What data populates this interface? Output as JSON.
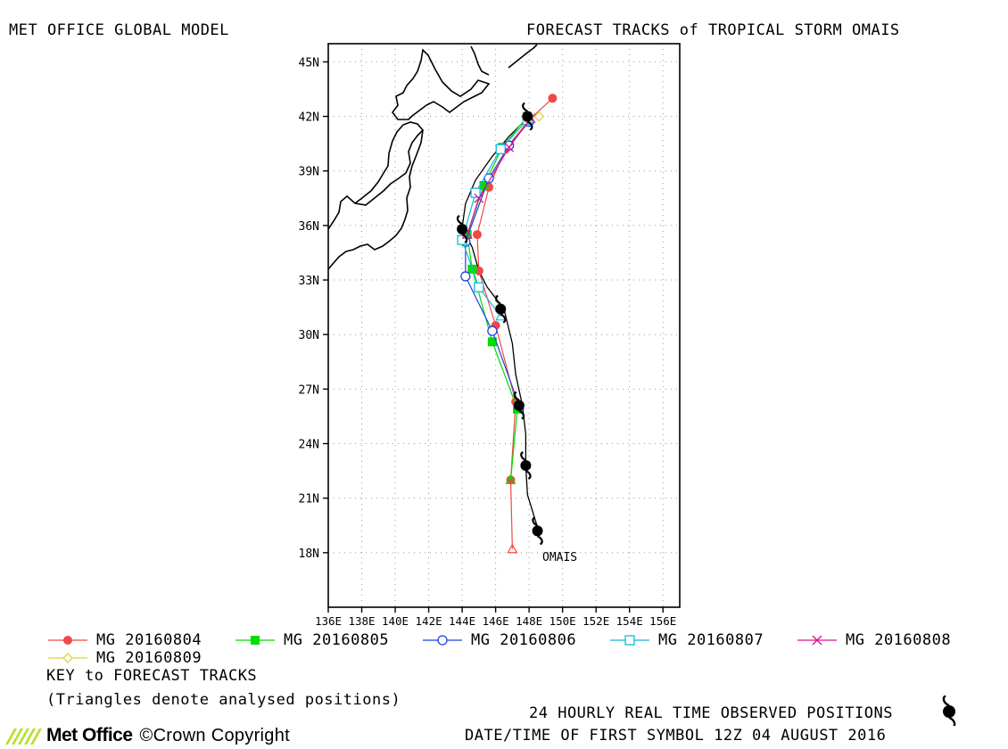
{
  "header": {
    "model_title": "MET OFFICE GLOBAL MODEL",
    "chart_title": "FORECAST TRACKS of TROPICAL STORM OMAIS"
  },
  "map": {
    "lon_range": [
      136,
      157
    ],
    "lat_range": [
      15,
      46
    ],
    "lat_ticks": [
      {
        "value": 18,
        "label": "18N"
      },
      {
        "value": 21,
        "label": "21N"
      },
      {
        "value": 24,
        "label": "24N"
      },
      {
        "value": 27,
        "label": "27N"
      },
      {
        "value": 30,
        "label": "30N"
      },
      {
        "value": 33,
        "label": "33N"
      },
      {
        "value": 36,
        "label": "36N"
      },
      {
        "value": 39,
        "label": "39N"
      },
      {
        "value": 42,
        "label": "42N"
      },
      {
        "value": 45,
        "label": "45N"
      }
    ],
    "lon_ticks": [
      {
        "value": 136,
        "label": "136E"
      },
      {
        "value": 138,
        "label": "138E"
      },
      {
        "value": 140,
        "label": "140E"
      },
      {
        "value": 142,
        "label": "142E"
      },
      {
        "value": 144,
        "label": "144E"
      },
      {
        "value": 146,
        "label": "146E"
      },
      {
        "value": 148,
        "label": "148E"
      },
      {
        "value": 150,
        "label": "150E"
      },
      {
        "value": 152,
        "label": "152E"
      },
      {
        "value": 154,
        "label": "154E"
      },
      {
        "value": 156,
        "label": "156E"
      }
    ],
    "grid": true,
    "storm_label": "OMAIS",
    "observed_track": [
      [
        148.6,
        19.1
      ],
      [
        147.9,
        21.2
      ],
      [
        147.8,
        22.8
      ],
      [
        147.8,
        24.5
      ],
      [
        147.6,
        26.1
      ],
      [
        147.2,
        27.8
      ],
      [
        147.0,
        29.5
      ],
      [
        146.5,
        31.4
      ],
      [
        145.5,
        32.6
      ],
      [
        145.0,
        33.5
      ],
      [
        144.6,
        34.8
      ],
      [
        144.0,
        35.9
      ],
      [
        144.2,
        37.2
      ],
      [
        144.8,
        38.5
      ],
      [
        145.8,
        39.8
      ],
      [
        146.8,
        40.9
      ],
      [
        147.9,
        41.9
      ]
    ],
    "observed_symbols": [
      [
        148.5,
        19.2
      ],
      [
        147.8,
        22.8
      ],
      [
        147.4,
        26.1
      ],
      [
        146.3,
        31.4
      ],
      [
        144.0,
        35.8
      ],
      [
        147.9,
        42.0
      ]
    ]
  },
  "chart_data": {
    "type": "map-tracks",
    "title": "FORECAST TRACKS of TROPICAL STORM OMAIS",
    "xlim": [
      136,
      157
    ],
    "ylim": [
      15,
      46
    ],
    "series": [
      {
        "name": "MG 20160804",
        "color": "#f04848",
        "marker": "circle-filled",
        "analysed": [
          147.0,
          18.2
        ],
        "points": [
          [
            147.0,
            18.2
          ],
          [
            146.9,
            22.0
          ],
          [
            147.2,
            26.3
          ],
          [
            146.0,
            30.5
          ],
          [
            145.0,
            33.5
          ],
          [
            144.9,
            35.5
          ],
          [
            145.6,
            38.1
          ],
          [
            146.6,
            40.2
          ],
          [
            148.0,
            41.8
          ],
          [
            149.4,
            43.0
          ]
        ]
      },
      {
        "name": "MG 20160805",
        "color": "#00dd00",
        "marker": "square-filled",
        "analysed": [
          146.9,
          22.0
        ],
        "points": [
          [
            146.9,
            22.0
          ],
          [
            147.3,
            25.9
          ],
          [
            145.8,
            29.6
          ],
          [
            144.6,
            33.6
          ],
          [
            144.3,
            35.5
          ],
          [
            145.3,
            38.2
          ],
          [
            146.4,
            40.3
          ],
          [
            147.9,
            42.0
          ]
        ]
      },
      {
        "name": "MG 20160806",
        "color": "#2040e0",
        "marker": "circle-open",
        "analysed": [
          147.4,
          26.1
        ],
        "points": [
          [
            147.4,
            26.1
          ],
          [
            145.8,
            30.2
          ],
          [
            144.2,
            33.2
          ],
          [
            144.2,
            35.1
          ],
          [
            145.6,
            38.6
          ],
          [
            146.8,
            40.4
          ],
          [
            148.0,
            41.7
          ]
        ]
      },
      {
        "name": "MG 20160807",
        "color": "#10b8d8",
        "marker": "square-open",
        "analysed": [
          146.3,
          31.0
        ],
        "points": [
          [
            146.3,
            31.0
          ],
          [
            145.0,
            32.6
          ],
          [
            144.0,
            35.2
          ],
          [
            144.8,
            37.8
          ],
          [
            146.3,
            40.2
          ],
          [
            147.9,
            41.8
          ]
        ]
      },
      {
        "name": "MG 20160808",
        "color": "#d81090",
        "marker": "cross",
        "analysed": [
          144.3,
          35.5
        ],
        "points": [
          [
            144.3,
            35.5
          ],
          [
            145.0,
            37.5
          ],
          [
            146.8,
            40.3
          ],
          [
            148.1,
            41.9
          ]
        ]
      },
      {
        "name": "MG 20160809",
        "color": "#e0d040",
        "marker": "diamond-open",
        "analysed": [
          147.9,
          41.9
        ],
        "points": [
          [
            147.9,
            41.9
          ],
          [
            148.6,
            42.0
          ]
        ]
      }
    ]
  },
  "legend": {
    "key_title": "KEY to FORECAST TRACKS",
    "note": "(Triangles denote analysed positions)"
  },
  "footer": {
    "observed_label": "24 HOURLY REAL TIME OBSERVED POSITIONS",
    "first_symbol": "DATE/TIME OF FIRST SYMBOL 12Z 04 AUGUST 2016",
    "logo_text": "Met Office",
    "copyright": "Crown Copyright"
  }
}
